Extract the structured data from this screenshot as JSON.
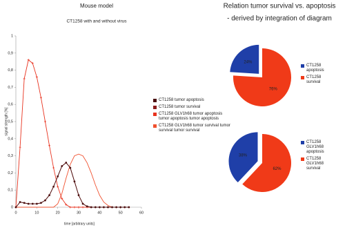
{
  "chart_data": [
    {
      "type": "line",
      "title": "Mouse model",
      "subtitle": "CT1258 with and without virus",
      "y_label": "signal strength [%]",
      "x_label": "time [arbitrary units]",
      "x": [
        0,
        2,
        4,
        6,
        8,
        10,
        12,
        14,
        16,
        18,
        20,
        22,
        24,
        26,
        28,
        30,
        32,
        34,
        36,
        38,
        40,
        42,
        44,
        46,
        48,
        50,
        52,
        54
      ],
      "series": [
        {
          "name": "CT1258 tumor apoptosis",
          "color": "#4a1010",
          "marker": "square",
          "values": [
            0,
            0.03,
            0.025,
            0.02,
            0.02,
            0.02,
            0.025,
            0.04,
            0.07,
            0.12,
            0.18,
            0.24,
            0.26,
            0.23,
            0.15,
            0.07,
            0.02,
            0.005,
            0,
            0,
            0,
            0,
            0,
            0,
            0,
            0,
            0,
            0
          ]
        },
        {
          "name": "CT1258 tumor survival",
          "color": "#8b1c1c",
          "marker": "diamond",
          "values": [
            0,
            0.03,
            0.025,
            0.02,
            0.02,
            0.02,
            0.025,
            0.04,
            0.07,
            0.12,
            0.18,
            0.24,
            0.26,
            0.23,
            0.15,
            0.07,
            0.02,
            0.005,
            0,
            0,
            0,
            0,
            0,
            0,
            0,
            0,
            0,
            0
          ]
        },
        {
          "name": "CT1258 GLV1h68 tumor apoptosis tumor apoptosis tumor apoptosis",
          "color": "#e8321e",
          "marker": "plus",
          "values": [
            0,
            0.35,
            0.75,
            0.86,
            0.84,
            0.76,
            0.64,
            0.5,
            0.36,
            0.23,
            0.12,
            0.05,
            0.015,
            0,
            0,
            0,
            0,
            0,
            0,
            0,
            0,
            0,
            0,
            0,
            0,
            0,
            0,
            0
          ]
        },
        {
          "name": "CT1258 GLV1h68 tumor survival tumor survival tumor survival",
          "color": "#f0502e",
          "marker": "none",
          "values": [
            0,
            0,
            0,
            0,
            0,
            0,
            0,
            0,
            0,
            0,
            0.02,
            0.08,
            0.17,
            0.25,
            0.3,
            0.31,
            0.3,
            0.26,
            0.2,
            0.13,
            0.07,
            0.03,
            0.01,
            0,
            0,
            0,
            0,
            0
          ]
        }
      ],
      "xlim": [
        0,
        60
      ],
      "xticks": [
        0,
        10,
        20,
        30,
        40,
        50,
        60
      ],
      "ylim": [
        0,
        1
      ],
      "yticks": [
        0,
        {
          "value": 0.1,
          "label": "0,1"
        },
        {
          "value": 0.2,
          "label": "0,2"
        },
        {
          "value": 0.3,
          "label": "0,3"
        },
        {
          "value": 0.4,
          "label": "0,4"
        },
        {
          "value": 0.5,
          "label": "0,5"
        },
        {
          "value": 0.6,
          "label": "0,6"
        },
        {
          "value": 0.7,
          "label": "0,7"
        },
        {
          "value": 0.8,
          "label": "0,8"
        },
        {
          "value": 0.9,
          "label": "0,9"
        },
        1
      ],
      "grid": false
    },
    {
      "type": "pie",
      "title": "Relation tumor survival vs. apoptosis",
      "subtitle": "- derived by integration of diagram",
      "categories": [
        "CT1258 apoptosis",
        "CT1258 survival"
      ],
      "values": [
        24,
        76
      ],
      "value_labels": [
        "24%",
        "76%"
      ],
      "colors": [
        "#1f3fa8",
        "#f03a18"
      ]
    },
    {
      "type": "pie",
      "categories": [
        "CT1258 GLV1h68 apoptosis",
        "CT1258 GLV1h68 survival"
      ],
      "values": [
        38,
        62
      ],
      "value_labels": [
        "38%",
        "62%"
      ],
      "colors": [
        "#1f3fa8",
        "#f03a18"
      ]
    }
  ]
}
